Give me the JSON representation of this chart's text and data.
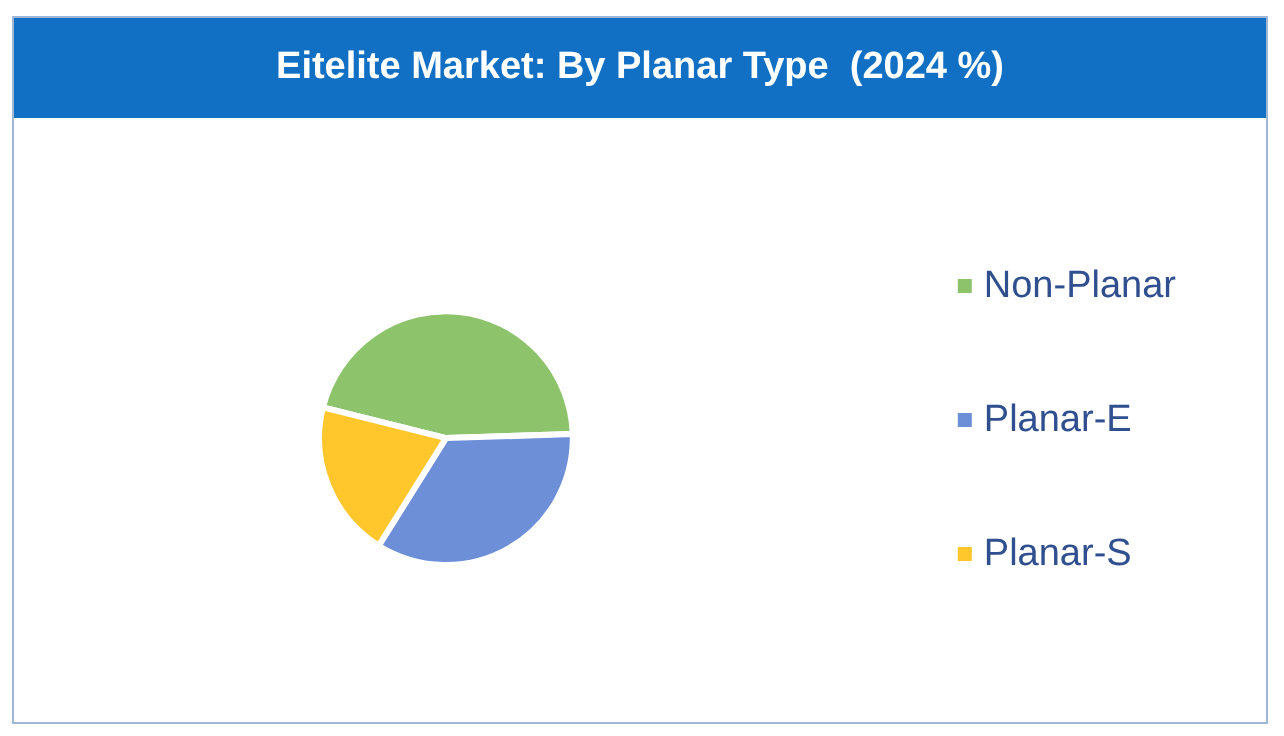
{
  "chart_data": {
    "type": "pie",
    "title": "Eitelite Market: By Planar Type  (2024 %)",
    "categories": [
      "Non-Planar",
      "Planar-E",
      "Planar-S"
    ],
    "values": [
      45.6,
      34.4,
      20
    ],
    "colors": [
      "#8dc36b",
      "#6d8fd8",
      "#ffc72c"
    ],
    "legend": "right"
  }
}
